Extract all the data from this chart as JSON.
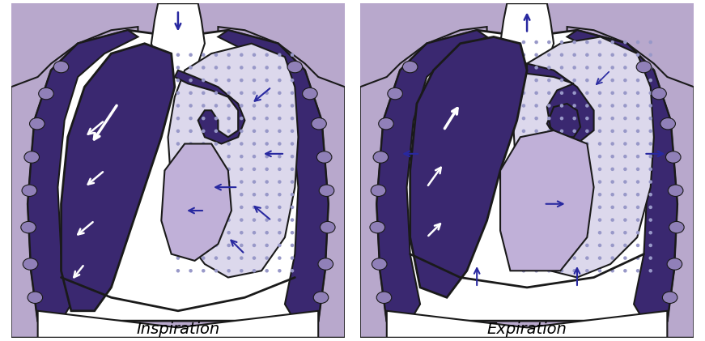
{
  "bg_color": "#ffffff",
  "panel_bg": "#b8a8cc",
  "chest_interior": "#ffffff",
  "lung_dark": "#3a2870",
  "lung_dotted_bg": "#dcd8ec",
  "heart_color": "#c0b0d8",
  "trachea_color": "#3a2870",
  "rib_color": "#9080b8",
  "outline_color": "#1a1a1a",
  "arrow_blue": "#2828a0",
  "arrow_white": "#ffffff",
  "dot_color": "#9898c8",
  "label_left": "Inspiration",
  "label_right": "Expiration",
  "label_fontsize": 14
}
